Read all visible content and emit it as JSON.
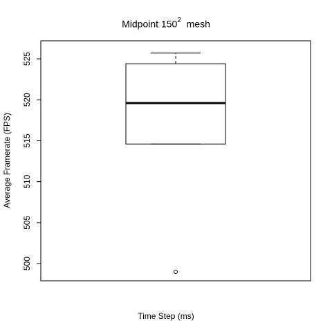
{
  "chart_data": {
    "type": "boxplot",
    "title_main": "Midpoint  150",
    "title_superscript": "2",
    "title_suffix": "  mesh",
    "xlabel": "Time Step (ms)",
    "ylabel": "Average Framerate (FPS)",
    "ylim": [
      497.9,
      527.2
    ],
    "yticks": [
      500,
      505,
      510,
      515,
      520,
      525
    ],
    "box": {
      "whisker_low": 514.6,
      "q1": 514.6,
      "median": 519.6,
      "q3": 524.4,
      "whisker_high": 525.7,
      "outliers": [
        499.0
      ]
    },
    "grid": false
  }
}
